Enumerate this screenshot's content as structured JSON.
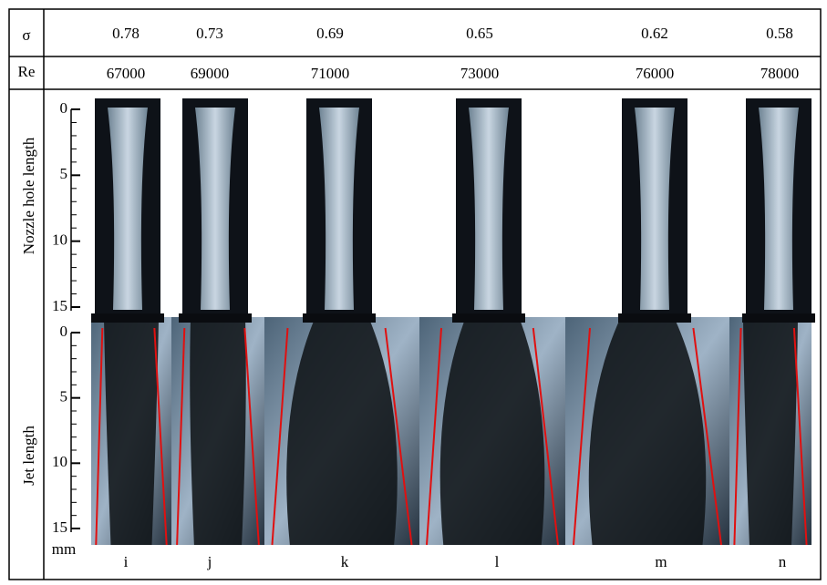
{
  "header": {
    "sigma_label": "σ",
    "re_label": "Re"
  },
  "sigma": [
    0.78,
    0.73,
    0.69,
    0.65,
    0.62,
    0.58
  ],
  "re": [
    67000,
    69000,
    71000,
    73000,
    76000,
    78000
  ],
  "cases": [
    "i",
    "j",
    "k",
    "l",
    "m",
    "n"
  ],
  "nozzle_axis": {
    "label": "Nozzle hole length",
    "ticks": [
      0,
      5,
      10,
      15
    ]
  },
  "jet_axis": {
    "label": "Jet length",
    "ticks": [
      0,
      5,
      10,
      15
    ],
    "unit": "mm"
  }
}
